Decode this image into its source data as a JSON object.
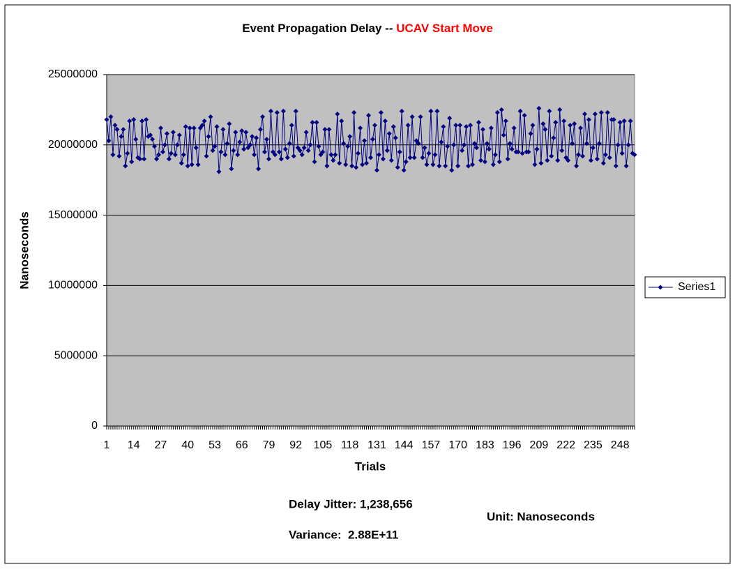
{
  "chart_data": {
    "type": "line",
    "title": "Event Propagation Delay --",
    "title_highlight": "UCAV Start Move",
    "ylabel": "Nanoseconds",
    "xlabel": "Trials",
    "annotations": [
      "Delay Jitter: 1,238,656",
      "Variance:  2.88E+11",
      "Unit: Nanoseconds"
    ],
    "ylim": [
      0,
      25000000
    ],
    "yticks": [
      0,
      5000000,
      10000000,
      15000000,
      20000000,
      25000000
    ],
    "grid": true,
    "legend": "right",
    "background": "#c0c0c0",
    "categories": [
      1,
      null,
      null,
      null,
      null,
      null,
      null,
      null,
      null,
      null,
      null,
      null,
      null,
      14,
      null,
      null,
      null,
      null,
      null,
      null,
      null,
      null,
      null,
      null,
      null,
      null,
      27,
      null,
      null,
      null,
      null,
      null,
      null,
      null,
      null,
      null,
      null,
      null,
      null,
      40,
      null,
      null,
      null,
      null,
      null,
      null,
      null,
      null,
      null,
      null,
      null,
      null,
      53,
      null,
      null,
      null,
      null,
      null,
      null,
      null,
      null,
      null,
      null,
      null,
      null,
      66,
      null,
      null,
      null,
      null,
      null,
      null,
      null,
      null,
      null,
      null,
      null,
      null,
      79,
      null,
      null,
      null,
      null,
      null,
      null,
      null,
      null,
      null,
      null,
      null,
      null,
      92,
      null,
      null,
      null,
      null,
      null,
      null,
      null,
      null,
      null,
      null,
      null,
      null,
      105,
      null,
      null,
      null,
      null,
      null,
      null,
      null,
      null,
      null,
      null,
      null,
      null,
      118,
      null,
      null,
      null,
      null,
      null,
      null,
      null,
      null,
      null,
      null,
      null,
      null,
      131,
      null,
      null,
      null,
      null,
      null,
      null,
      null,
      null,
      null,
      null,
      null,
      null,
      144,
      null,
      null,
      null,
      null,
      null,
      null,
      null,
      null,
      null,
      null,
      null,
      null,
      157,
      null,
      null,
      null,
      null,
      null,
      null,
      null,
      null,
      null,
      null,
      null,
      null,
      170,
      null,
      null,
      null,
      null,
      null,
      null,
      null,
      null,
      null,
      null,
      null,
      null,
      183,
      null,
      null,
      null,
      null,
      null,
      null,
      null,
      null,
      null,
      null,
      null,
      null,
      196,
      null,
      null,
      null,
      null,
      null,
      null,
      null,
      null,
      null,
      null,
      null,
      null,
      209,
      null,
      null,
      null,
      null,
      null,
      null,
      null,
      null,
      null,
      null,
      null,
      null,
      222,
      null,
      null,
      null,
      null,
      null,
      null,
      null,
      null,
      null,
      null,
      null,
      null,
      235,
      null,
      null,
      null,
      null,
      null,
      null,
      null,
      null,
      null,
      null,
      null,
      null,
      248,
      null,
      null,
      null,
      null,
      null,
      null,
      null
    ],
    "series": [
      {
        "name": "Series1",
        "color": "#000080",
        "values": [
          21800000,
          20300000,
          22000000,
          19300000,
          21400000,
          21100000,
          19200000,
          20600000,
          21100000,
          18500000,
          19400000,
          21700000,
          18800000,
          21800000,
          20400000,
          19100000,
          19000000,
          21700000,
          19000000,
          21800000,
          20600000,
          20700000,
          20400000,
          19900000,
          19000000,
          19300000,
          21200000,
          19500000,
          20000000,
          20800000,
          19000000,
          19400000,
          20900000,
          19300000,
          20000000,
          20700000,
          18700000,
          19300000,
          21300000,
          18500000,
          21200000,
          18600000,
          21200000,
          19800000,
          18600000,
          21200000,
          21400000,
          21700000,
          19200000,
          20600000,
          22000000,
          19600000,
          19900000,
          21300000,
          18100000,
          19500000,
          21100000,
          19300000,
          20100000,
          21500000,
          18300000,
          19600000,
          20900000,
          19300000,
          20200000,
          21000000,
          19700000,
          20900000,
          19800000,
          20000000,
          20600000,
          19300000,
          20500000,
          18300000,
          21100000,
          22000000,
          19500000,
          20400000,
          19000000,
          22400000,
          19500000,
          19300000,
          22300000,
          19500000,
          19000000,
          22400000,
          19700000,
          19100000,
          20100000,
          21400000,
          19200000,
          22400000,
          19800000,
          19600000,
          19300000,
          19800000,
          20900000,
          19600000,
          20000000,
          21600000,
          18800000,
          21600000,
          19900000,
          19300000,
          19500000,
          21100000,
          18500000,
          21100000,
          19300000,
          18900000,
          19300000,
          22200000,
          18700000,
          21700000,
          20100000,
          18600000,
          19900000,
          20600000,
          18500000,
          22300000,
          18400000,
          19400000,
          21200000,
          18600000,
          20300000,
          18700000,
          22100000,
          19100000,
          20400000,
          21400000,
          18200000,
          19300000,
          22300000,
          19000000,
          21700000,
          19600000,
          20800000,
          18900000,
          21300000,
          20500000,
          18400000,
          19500000,
          22400000,
          18200000,
          18800000,
          21400000,
          19100000,
          22000000,
          19100000,
          20300000,
          20100000,
          22000000,
          19100000,
          19800000,
          18600000,
          19400000,
          22400000,
          18600000,
          19300000,
          22400000,
          18500000,
          20200000,
          21300000,
          18500000,
          19900000,
          21900000,
          18200000,
          20000000,
          21400000,
          18500000,
          21400000,
          19600000,
          20000000,
          21300000,
          18500000,
          21400000,
          18600000,
          20100000,
          19800000,
          21600000,
          18900000,
          21100000,
          18800000,
          20100000,
          19700000,
          21200000,
          18600000,
          19300000,
          22300000,
          18800000,
          22500000,
          20700000,
          21700000,
          19000000,
          20100000,
          19700000,
          21200000,
          19500000,
          19500000,
          22400000,
          19400000,
          22100000,
          19500000,
          19500000,
          20800000,
          21400000,
          18600000,
          19700000,
          22600000,
          18700000,
          21500000,
          21100000,
          18900000,
          22400000,
          19200000,
          20500000,
          21600000,
          18900000,
          22500000,
          19600000,
          21700000,
          19100000,
          18900000,
          21400000,
          20100000,
          21500000,
          18500000,
          19300000,
          21200000,
          19200000,
          22200000,
          20100000,
          21800000,
          18900000,
          19800000,
          22200000,
          19000000,
          20100000,
          22300000,
          18700000,
          19300000,
          22300000,
          19100000,
          21800000,
          21800000,
          18500000,
          20000000,
          21600000,
          19400000,
          21700000,
          18500000,
          20000000,
          21700000,
          19400000,
          19300000
        ]
      }
    ]
  }
}
